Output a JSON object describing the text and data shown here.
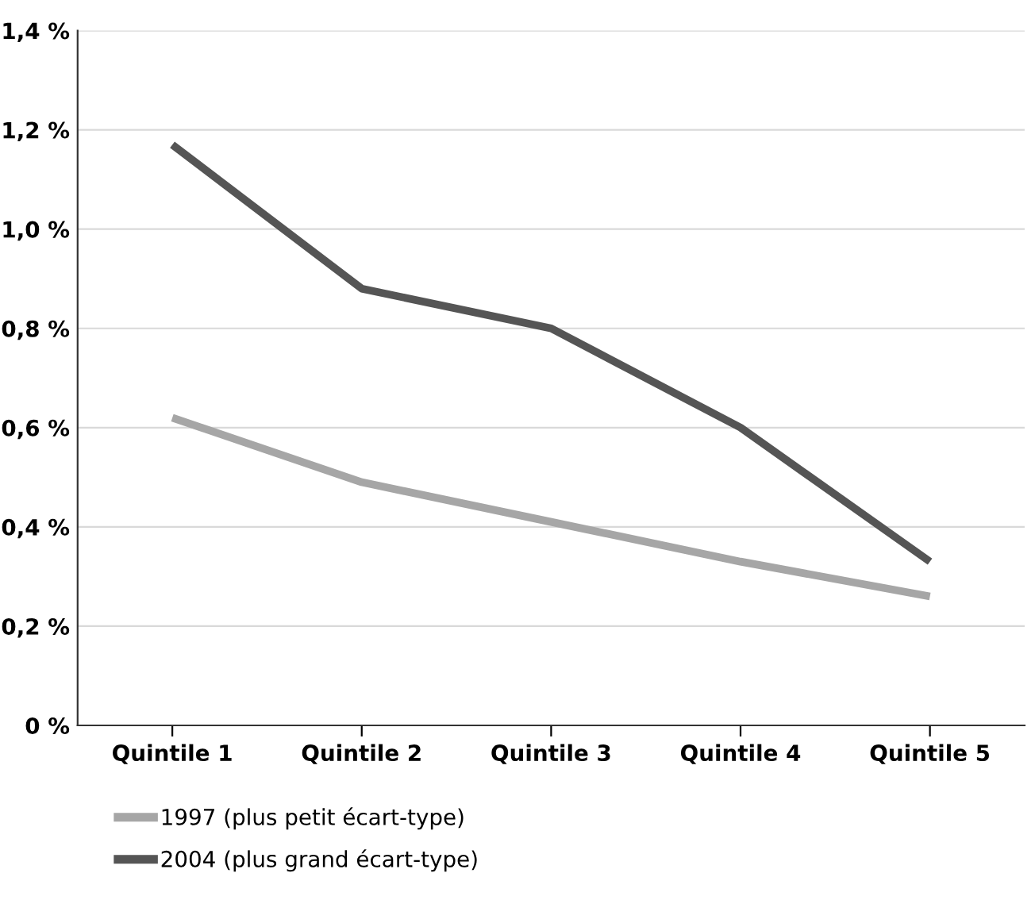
{
  "chart_data": {
    "type": "line",
    "categories": [
      "Quintile 1",
      "Quintile 2",
      "Quintile 3",
      "Quintile 4",
      "Quintile 5"
    ],
    "series": [
      {
        "name": "1997 (plus petit écart-type)",
        "color": "#a6a6a6",
        "values": [
          0.62,
          0.49,
          0.41,
          0.33,
          0.26
        ]
      },
      {
        "name": "2004 (plus grand écart-type)",
        "color": "#555555",
        "values": [
          1.17,
          0.88,
          0.8,
          0.6,
          0.33
        ]
      }
    ],
    "ylim": [
      0,
      1.4
    ],
    "yticks": [
      {
        "value": 0,
        "label": "0 %"
      },
      {
        "value": 0.2,
        "label": "0,2 %"
      },
      {
        "value": 0.4,
        "label": "0,4 %"
      },
      {
        "value": 0.6,
        "label": "0,6 %"
      },
      {
        "value": 0.8,
        "label": "0,8 %"
      },
      {
        "value": 1.0,
        "label": "1,0 %"
      },
      {
        "value": 1.2,
        "label": "1,2 %"
      },
      {
        "value": 1.4,
        "label": "1,4 %"
      }
    ],
    "grid": "y",
    "legend": "bottom",
    "marker": "none",
    "line_style": "solid"
  }
}
